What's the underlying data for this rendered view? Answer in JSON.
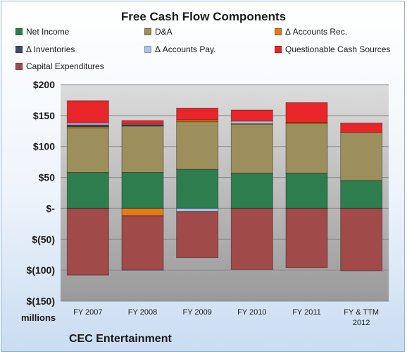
{
  "chart_data": {
    "type": "bar",
    "stacked": true,
    "title": "Free Cash Flow Components",
    "ylabel_units": "millions",
    "footer": "CEC Entertainment",
    "ylim": [
      -150,
      200
    ],
    "ytick_values": [
      200,
      150,
      100,
      50,
      0,
      -50,
      -100,
      -150
    ],
    "ytick_labels": [
      "$200",
      "$150",
      "$100",
      "$50",
      "$-",
      "$(50)",
      "$(100)",
      "$(150)"
    ],
    "grid": true,
    "legend_position": "top",
    "categories": [
      "FY 2007",
      "FY 2008",
      "FY 2009",
      "FY 2010",
      "FY 2011",
      "FY & TTM 2012"
    ],
    "series": [
      {
        "name": "Net Income",
        "color": "#2e7d4f",
        "values": [
          58,
          58,
          63,
          57,
          57,
          45
        ]
      },
      {
        "name": "D&A",
        "color": "#9d8f5b",
        "values": [
          72,
          75,
          77,
          79,
          80,
          78
        ]
      },
      {
        "name": "Δ Accounts Rec.",
        "color": "#e07b1a",
        "values": [
          2,
          -12,
          3,
          1,
          2,
          0
        ]
      },
      {
        "name": "Δ Inventories",
        "color": "#3b4a6b",
        "values": [
          3,
          2,
          0,
          0,
          0,
          0
        ]
      },
      {
        "name": "Δ Accounts Pay.",
        "color": "#a9c6e8",
        "values": [
          3,
          1,
          -5,
          4,
          0,
          0
        ]
      },
      {
        "name": "Questionable Cash Sources",
        "color": "#e8262a",
        "values": [
          36,
          6,
          19,
          18,
          32,
          15
        ]
      },
      {
        "name": "Capital Expenditures",
        "color": "#a14a4a",
        "values": [
          -108,
          -88,
          -75,
          -99,
          -96,
          -101
        ]
      }
    ]
  }
}
